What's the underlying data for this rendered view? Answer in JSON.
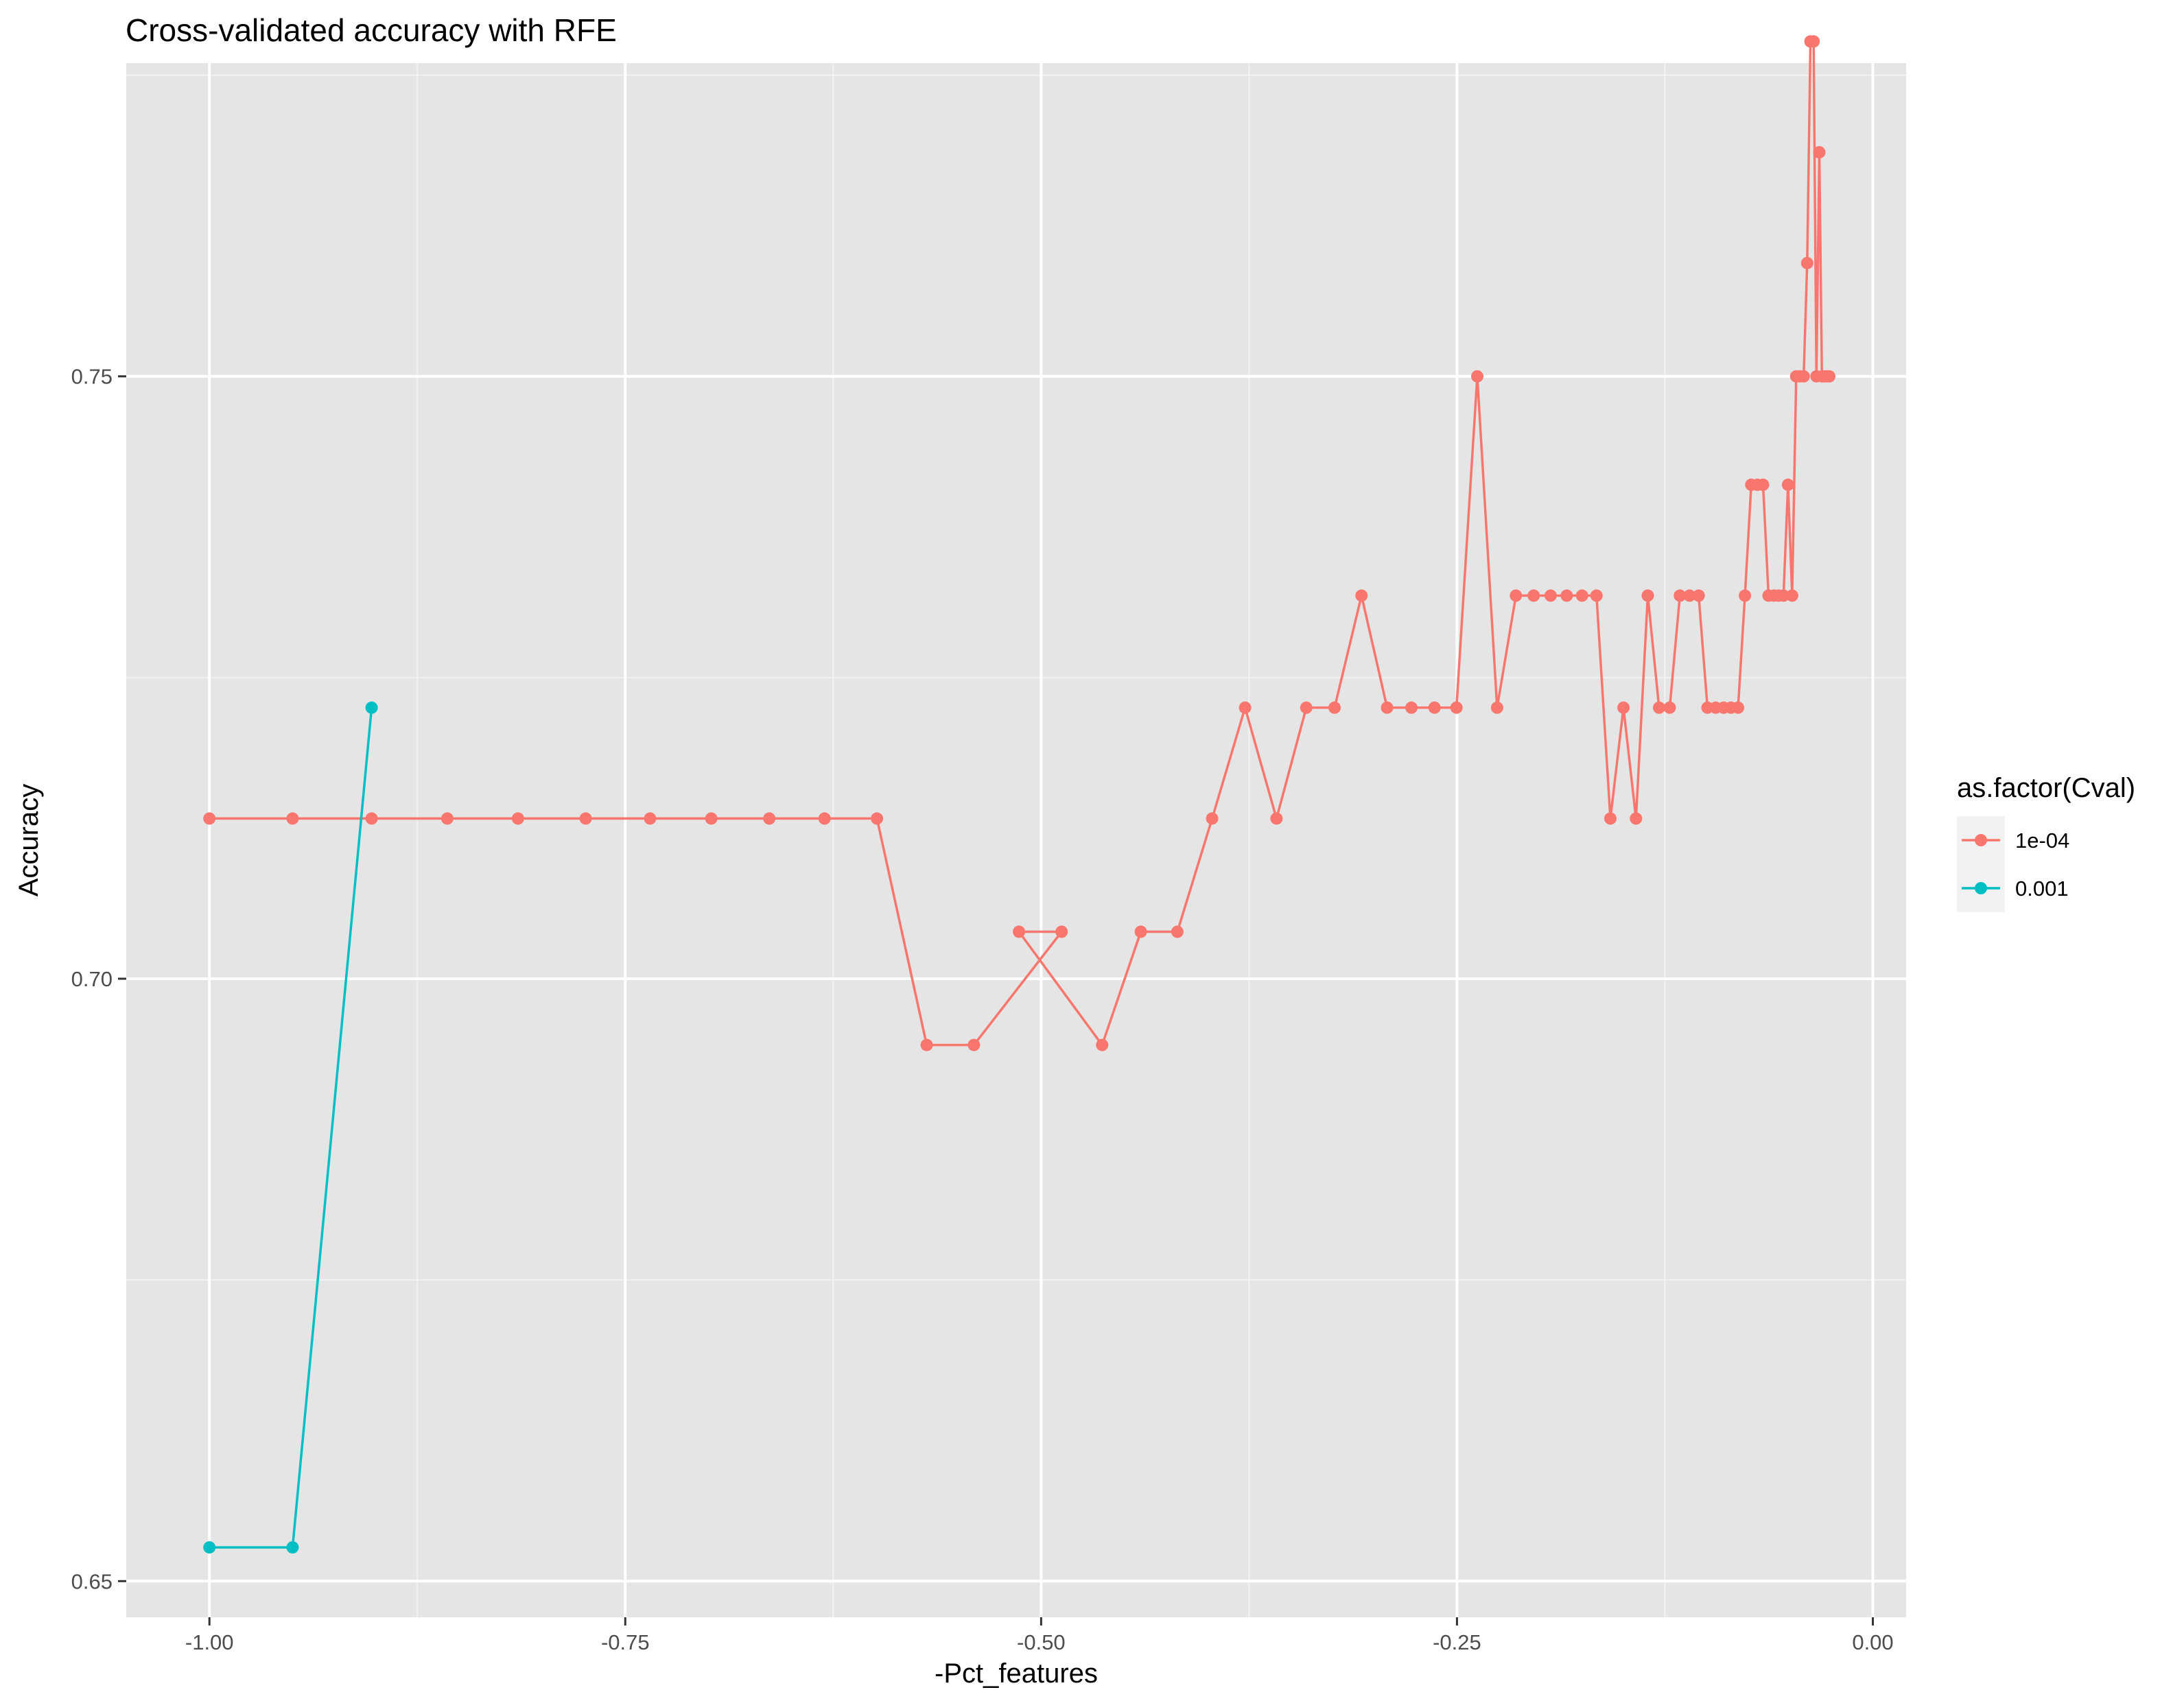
{
  "chart_data": {
    "type": "line",
    "title": "Cross-validated accuracy with RFE",
    "xlabel": "-Pct_features",
    "ylabel": "Accuracy",
    "xlim": [
      -1.05,
      0.02
    ],
    "ylim": [
      0.647,
      0.776
    ],
    "x_ticks": [
      -1.0,
      -0.75,
      -0.5,
      -0.25,
      0.0
    ],
    "x_tick_labels": [
      "-1.00",
      "-0.75",
      "-0.50",
      "-0.25",
      "0.00"
    ],
    "y_ticks": [
      0.65,
      0.7,
      0.75
    ],
    "y_tick_labels": [
      "0.65",
      "0.70",
      "0.75"
    ],
    "grid": true,
    "panel_background": "#e5e5e5",
    "legend": {
      "title": "as.factor(Cval)",
      "position": "right"
    },
    "series": [
      {
        "name": "1e-04",
        "color": "#f8766d",
        "x": [
          -1.0,
          -0.95,
          -0.9025,
          -0.857,
          -0.8145,
          -0.7738,
          -0.7351,
          -0.6983,
          -0.6634,
          -0.6302,
          -0.5987,
          -0.5688,
          -0.5404,
          -0.4877,
          -0.5133,
          -0.4633,
          -0.4401,
          -0.4181,
          -0.3972,
          -0.3774,
          -0.3585,
          -0.3406,
          -0.3236,
          -0.3074,
          -0.292,
          -0.2774,
          -0.2635,
          -0.2503,
          -0.2378,
          -0.2259,
          -0.2146,
          -0.2039,
          -0.1937,
          -0.184,
          -0.1748,
          -0.1661,
          -0.1578,
          -0.1499,
          -0.1424,
          -0.1353,
          -0.1285,
          -0.1221,
          -0.116,
          -0.1102,
          -0.1047,
          -0.0994,
          -0.0945,
          -0.0897,
          -0.0853,
          -0.081,
          -0.0769,
          -0.0731,
          -0.0694,
          -0.066,
          -0.0627,
          -0.0595,
          -0.0566,
          -0.0537,
          -0.051,
          -0.0485,
          -0.0461,
          -0.0438,
          -0.0416,
          -0.0395,
          -0.0375,
          -0.0356,
          -0.0339,
          -0.0322,
          -0.0306,
          -0.029,
          -0.0276,
          -0.0262
        ],
        "y": [
          0.7133,
          0.7133,
          0.7133,
          0.7133,
          0.7133,
          0.7133,
          0.7133,
          0.7133,
          0.7133,
          0.7133,
          0.7133,
          0.6945,
          0.6945,
          0.7039,
          0.7039,
          0.6945,
          0.7039,
          0.7039,
          0.7133,
          0.7225,
          0.7133,
          0.7225,
          0.7225,
          0.7318,
          0.7225,
          0.7225,
          0.7225,
          0.7225,
          0.75,
          0.7225,
          0.7318,
          0.7318,
          0.7318,
          0.7318,
          0.7318,
          0.7318,
          0.7133,
          0.7225,
          0.7133,
          0.7318,
          0.7225,
          0.7225,
          0.7318,
          0.7318,
          0.7318,
          0.7225,
          0.7225,
          0.7225,
          0.7225,
          0.7225,
          0.7318,
          0.741,
          0.741,
          0.741,
          0.7318,
          0.7318,
          0.7318,
          0.7318,
          0.741,
          0.7318,
          0.75,
          0.75,
          0.75,
          0.7594,
          0.7778,
          0.7778,
          0.75,
          0.7686,
          0.75,
          0.75,
          0.75,
          0.75
        ]
      },
      {
        "name": "0.001",
        "color": "#00bfc4",
        "x": [
          -1.0,
          -0.95,
          -0.9025
        ],
        "y": [
          0.6528,
          0.6528,
          0.7225
        ]
      }
    ]
  }
}
